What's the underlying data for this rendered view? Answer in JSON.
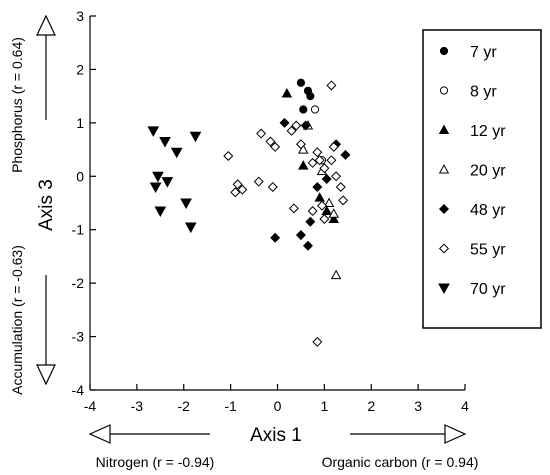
{
  "chart_data": {
    "type": "scatter",
    "xlabel": "Axis 1",
    "ylabel": "Axis 3",
    "xlim": [
      -4,
      4
    ],
    "ylim": [
      -4,
      3
    ],
    "xticks": [
      -4,
      -3,
      -2,
      -1,
      0,
      1,
      2,
      3,
      4
    ],
    "yticks": [
      -4,
      -3,
      -2,
      -1,
      0,
      1,
      2,
      3
    ],
    "grid": false,
    "legend_position": "top-right",
    "annotations": {
      "x_negative": {
        "name": "Nitrogen",
        "r": "(r = -0.94)"
      },
      "x_positive": {
        "name": "Organic carbon",
        "r": "(r = 0.94)"
      },
      "y_positive": {
        "name": "Phosphorus",
        "r": "(r = 0.64)"
      },
      "y_negative": {
        "name": "Accumulation",
        "r": "(r = -0.63)"
      }
    },
    "series": [
      {
        "name": "7 yr",
        "marker": "circle-filled",
        "x": [
          0.5,
          0.65,
          0.7,
          0.55
        ],
        "y": [
          1.75,
          1.6,
          1.5,
          1.25
        ]
      },
      {
        "name": "8 yr",
        "marker": "circle-open",
        "x": [
          0.8,
          0.95
        ],
        "y": [
          1.25,
          0.3
        ]
      },
      {
        "name": "12 yr",
        "marker": "triangle-up-filled",
        "x": [
          0.2,
          0.55,
          0.9,
          1.05,
          1.2
        ],
        "y": [
          1.55,
          0.2,
          -0.4,
          -0.65,
          -0.8
        ]
      },
      {
        "name": "20 yr",
        "marker": "triangle-up-open",
        "x": [
          0.65,
          0.95,
          1.1,
          1.2,
          1.25,
          0.55
        ],
        "y": [
          0.95,
          0.1,
          -0.5,
          -0.7,
          -1.85,
          0.5
        ]
      },
      {
        "name": "48 yr",
        "marker": "diamond-filled",
        "x": [
          0.15,
          0.6,
          1.05,
          1.25,
          1.45,
          0.85,
          0.7,
          0.5,
          -0.05,
          0.65
        ],
        "y": [
          1.0,
          0.95,
          -0.05,
          0.6,
          0.4,
          -0.2,
          -0.85,
          -1.1,
          -1.15,
          -1.3
        ]
      },
      {
        "name": "55 yr",
        "marker": "diamond-open",
        "x": [
          -1.05,
          -0.35,
          -0.15,
          -0.05,
          0.3,
          0.4,
          0.5,
          0.75,
          0.85,
          0.9,
          1.0,
          1.15,
          1.25,
          1.35,
          1.4,
          1.0,
          0.75,
          0.35,
          -0.1,
          -0.4,
          -0.75,
          -0.85,
          -0.9,
          1.15,
          0.95,
          0.85,
          1.2
        ],
        "y": [
          0.38,
          0.8,
          0.65,
          0.55,
          0.85,
          0.95,
          0.6,
          0.25,
          0.45,
          0.3,
          0.15,
          0.3,
          0.0,
          -0.2,
          -0.45,
          -0.8,
          -0.65,
          -0.6,
          -0.2,
          -0.1,
          -0.25,
          -0.15,
          -0.3,
          1.7,
          -0.55,
          -3.1,
          0.55
        ]
      },
      {
        "name": "70 yr",
        "marker": "triangle-down-filled",
        "x": [
          -2.65,
          -2.4,
          -2.55,
          -2.35,
          -2.6,
          -2.5,
          -1.85,
          -1.75,
          -2.15,
          -1.95
        ],
        "y": [
          0.85,
          0.65,
          0.0,
          -0.1,
          -0.2,
          -0.65,
          -0.95,
          0.75,
          0.45,
          -0.5
        ]
      }
    ]
  }
}
